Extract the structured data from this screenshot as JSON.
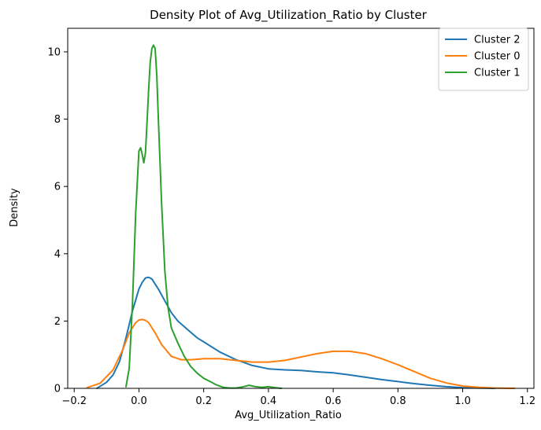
{
  "chart_data": {
    "type": "line",
    "title": "Density Plot of Avg_Utilization_Ratio by Cluster",
    "xlabel": "Avg_Utilization_Ratio",
    "ylabel": "Density",
    "xlim": [
      -0.22,
      1.22
    ],
    "ylim": [
      0,
      10.7
    ],
    "xticks": [
      -0.2,
      0.0,
      0.2,
      0.4,
      0.6,
      0.8,
      1.0,
      1.2
    ],
    "yticks": [
      0,
      2,
      4,
      6,
      8,
      10
    ],
    "xtick_labels": [
      "−0.2",
      "0.0",
      "0.2",
      "0.4",
      "0.6",
      "0.8",
      "1.0",
      "1.2"
    ],
    "ytick_labels": [
      "0",
      "2",
      "4",
      "6",
      "8",
      "10"
    ],
    "grid": false,
    "legend_position": "top-right",
    "series": [
      {
        "name": "Cluster 2",
        "color": "#1f77b4",
        "x": [
          -0.13,
          -0.1,
          -0.08,
          -0.06,
          -0.04,
          -0.02,
          0.0,
          0.01,
          0.02,
          0.03,
          0.04,
          0.05,
          0.06,
          0.08,
          0.1,
          0.12,
          0.15,
          0.18,
          0.2,
          0.25,
          0.3,
          0.35,
          0.4,
          0.45,
          0.5,
          0.55,
          0.6,
          0.65,
          0.7,
          0.75,
          0.8,
          0.85,
          0.9,
          0.95,
          1.0,
          1.05,
          1.1
        ],
        "y": [
          0.0,
          0.18,
          0.4,
          0.8,
          1.5,
          2.3,
          2.95,
          3.15,
          3.28,
          3.3,
          3.25,
          3.1,
          2.95,
          2.6,
          2.25,
          2.0,
          1.75,
          1.5,
          1.38,
          1.08,
          0.85,
          0.68,
          0.58,
          0.55,
          0.53,
          0.49,
          0.46,
          0.4,
          0.33,
          0.26,
          0.2,
          0.14,
          0.09,
          0.05,
          0.02,
          0.01,
          0.0
        ]
      },
      {
        "name": "Cluster 0",
        "color": "#ff7f0e",
        "x": [
          -0.16,
          -0.12,
          -0.08,
          -0.05,
          -0.03,
          -0.01,
          0.0,
          0.01,
          0.02,
          0.03,
          0.05,
          0.07,
          0.1,
          0.13,
          0.16,
          0.2,
          0.25,
          0.3,
          0.35,
          0.4,
          0.45,
          0.5,
          0.55,
          0.6,
          0.65,
          0.7,
          0.75,
          0.8,
          0.85,
          0.9,
          0.95,
          1.0,
          1.05,
          1.1,
          1.16
        ],
        "y": [
          0.02,
          0.15,
          0.55,
          1.15,
          1.65,
          1.95,
          2.03,
          2.05,
          2.02,
          1.95,
          1.65,
          1.3,
          0.95,
          0.85,
          0.85,
          0.88,
          0.88,
          0.83,
          0.78,
          0.78,
          0.83,
          0.93,
          1.03,
          1.1,
          1.1,
          1.03,
          0.88,
          0.7,
          0.5,
          0.3,
          0.16,
          0.07,
          0.03,
          0.01,
          0.0
        ]
      },
      {
        "name": "Cluster 1",
        "color": "#2ca02c",
        "x": [
          -0.04,
          -0.03,
          -0.02,
          -0.01,
          0.0,
          0.005,
          0.01,
          0.015,
          0.02,
          0.025,
          0.03,
          0.035,
          0.04,
          0.045,
          0.05,
          0.055,
          0.06,
          0.07,
          0.08,
          0.09,
          0.1,
          0.12,
          0.14,
          0.16,
          0.18,
          0.2,
          0.22,
          0.24,
          0.26,
          0.28,
          0.3,
          0.32,
          0.34,
          0.36,
          0.38,
          0.4,
          0.42,
          0.44
        ],
        "y": [
          0.05,
          0.6,
          2.5,
          5.2,
          7.05,
          7.15,
          6.95,
          6.7,
          7.0,
          7.9,
          8.9,
          9.7,
          10.1,
          10.2,
          10.1,
          9.3,
          8.0,
          5.5,
          3.5,
          2.4,
          1.8,
          1.35,
          0.95,
          0.65,
          0.45,
          0.3,
          0.2,
          0.1,
          0.03,
          0.01,
          0.01,
          0.04,
          0.09,
          0.05,
          0.03,
          0.05,
          0.02,
          0.0
        ]
      }
    ]
  }
}
